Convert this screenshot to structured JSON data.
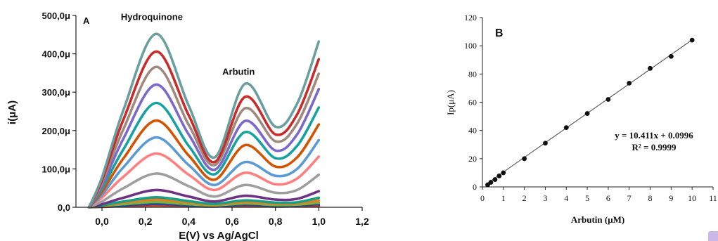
{
  "chart_data": [
    {
      "type": "line",
      "panel_label": "A",
      "xlabel": "E(V) vs Ag/AgCl",
      "ylabel": "i(μA)",
      "xlim": [
        -0.12,
        1.2
      ],
      "ylim": [
        0,
        500
      ],
      "x_ticks": [
        0.0,
        0.2,
        0.4,
        0.6,
        0.8,
        1.0,
        1.2
      ],
      "x_tick_labels": [
        "0,0",
        "0,2",
        "0,4",
        "0,6",
        "0,8",
        "1,0",
        "1,2"
      ],
      "y_ticks": [
        0,
        100,
        200,
        300,
        400,
        500
      ],
      "y_tick_labels": [
        "0,0",
        "100,0μ",
        "200,0μ",
        "300,0μ",
        "400,0μ",
        "500,0μ"
      ],
      "annotations": [
        {
          "text": "Hydroquinone",
          "x": 0.23,
          "y": 488
        },
        {
          "text": "Arbutin",
          "x": 0.63,
          "y": 345
        }
      ],
      "series": [
        {
          "color": "#c0392b",
          "values_x": [
            -0.06,
            0.0,
            0.1,
            0.25,
            0.4,
            0.52,
            0.66,
            0.8,
            0.9,
            1.0
          ],
          "values_y": [
            0,
            1,
            3,
            5,
            3,
            2,
            4,
            2,
            3,
            4
          ]
        },
        {
          "color": "#1f4e9c",
          "values_x": [
            -0.06,
            0.0,
            0.1,
            0.25,
            0.4,
            0.52,
            0.66,
            0.8,
            0.9,
            1.0
          ],
          "values_y": [
            0,
            2,
            5,
            9,
            5,
            3,
            7,
            4,
            5,
            8
          ]
        },
        {
          "color": "#7bb13c",
          "values_x": [
            -0.06,
            0.0,
            0.1,
            0.25,
            0.4,
            0.52,
            0.66,
            0.8,
            0.9,
            1.0
          ],
          "values_y": [
            0,
            3,
            8,
            14,
            8,
            5,
            10,
            6,
            7,
            12
          ]
        },
        {
          "color": "#e67e22",
          "values_x": [
            -0.06,
            0.0,
            0.1,
            0.25,
            0.4,
            0.52,
            0.66,
            0.8,
            0.9,
            1.0
          ],
          "values_y": [
            0,
            4,
            12,
            20,
            12,
            7,
            14,
            9,
            10,
            18
          ]
        },
        {
          "color": "#16a085",
          "values_x": [
            -0.06,
            0.0,
            0.1,
            0.25,
            0.4,
            0.52,
            0.66,
            0.8,
            0.9,
            1.0
          ],
          "values_y": [
            0,
            5,
            15,
            26,
            16,
            9,
            18,
            12,
            13,
            25
          ]
        },
        {
          "color": "#6c3483",
          "values_x": [
            -0.06,
            0.0,
            0.1,
            0.25,
            0.4,
            0.52,
            0.66,
            0.8,
            0.9,
            1.0
          ],
          "values_y": [
            0,
            8,
            25,
            45,
            28,
            15,
            30,
            20,
            22,
            42
          ]
        },
        {
          "color": "#9e9e9e",
          "values_x": [
            -0.06,
            0.0,
            0.1,
            0.25,
            0.4,
            0.52,
            0.66,
            0.8,
            0.9,
            1.0
          ],
          "values_y": [
            0,
            15,
            50,
            88,
            55,
            28,
            58,
            38,
            45,
            85
          ]
        },
        {
          "color": "#ff7f7f",
          "values_x": [
            -0.06,
            0.0,
            0.1,
            0.25,
            0.4,
            0.52,
            0.66,
            0.8,
            0.9,
            1.0
          ],
          "values_y": [
            0,
            25,
            80,
            140,
            85,
            45,
            90,
            60,
            75,
            132
          ]
        },
        {
          "color": "#5b9bd5",
          "values_x": [
            -0.06,
            0.0,
            0.1,
            0.25,
            0.4,
            0.52,
            0.66,
            0.8,
            0.9,
            1.0
          ],
          "values_y": [
            0,
            32,
            105,
            182,
            110,
            58,
            118,
            82,
            100,
            175
          ]
        },
        {
          "color": "#d35400",
          "values_x": [
            -0.06,
            0.0,
            0.1,
            0.25,
            0.4,
            0.52,
            0.66,
            0.8,
            0.9,
            1.0
          ],
          "values_y": [
            0,
            40,
            128,
            226,
            135,
            72,
            162,
            106,
            130,
            216
          ]
        },
        {
          "color": "#16a2a0",
          "values_x": [
            -0.06,
            0.0,
            0.1,
            0.25,
            0.4,
            0.52,
            0.66,
            0.8,
            0.9,
            1.0
          ],
          "values_y": [
            0,
            48,
            152,
            272,
            160,
            86,
            196,
            128,
            160,
            260
          ]
        },
        {
          "color": "#7b68c8",
          "values_x": [
            -0.06,
            0.0,
            0.1,
            0.25,
            0.4,
            0.52,
            0.66,
            0.8,
            0.9,
            1.0
          ],
          "values_y": [
            0,
            55,
            180,
            320,
            190,
            98,
            225,
            148,
            190,
            308
          ]
        },
        {
          "color": "#a0897d",
          "values_x": [
            -0.06,
            0.0,
            0.1,
            0.25,
            0.4,
            0.52,
            0.66,
            0.8,
            0.9,
            1.0
          ],
          "values_y": [
            0,
            63,
            205,
            366,
            215,
            110,
            258,
            172,
            218,
            348
          ]
        },
        {
          "color": "#c92a2a",
          "values_x": [
            -0.06,
            0.0,
            0.1,
            0.25,
            0.4,
            0.52,
            0.66,
            0.8,
            0.9,
            1.0
          ],
          "values_y": [
            0,
            70,
            230,
            406,
            240,
            118,
            288,
            190,
            242,
            386
          ]
        },
        {
          "color": "#6a9fa0",
          "values_x": [
            -0.06,
            0.0,
            0.1,
            0.25,
            0.4,
            0.52,
            0.66,
            0.8,
            0.9,
            1.0
          ],
          "values_y": [
            0,
            78,
            255,
            452,
            265,
            130,
            322,
            210,
            270,
            432
          ]
        }
      ]
    },
    {
      "type": "scatter",
      "panel_label": "B",
      "xlabel": "Arbutin  (μM)",
      "ylabel": "Ip(μA)",
      "xlim": [
        0,
        11
      ],
      "ylim": [
        0,
        120
      ],
      "x_ticks": [
        0,
        1,
        2,
        3,
        4,
        5,
        6,
        7,
        8,
        9,
        10,
        11
      ],
      "x_tick_labels": [
        "0",
        "1",
        "2",
        "3",
        "4",
        "5",
        "6",
        "7",
        "8",
        "9",
        "10",
        "11"
      ],
      "y_ticks": [
        0,
        20,
        40,
        60,
        80,
        100,
        120
      ],
      "y_tick_labels": [
        "0",
        "20",
        "40",
        "60",
        "80",
        "100",
        "120"
      ],
      "x": [
        0.25,
        0.4,
        0.6,
        0.8,
        1,
        2,
        3,
        4,
        5,
        6,
        7,
        8,
        9,
        10
      ],
      "y": [
        1.5,
        3.2,
        5.2,
        7.8,
        10,
        20,
        31,
        42,
        52,
        62,
        73.5,
        84,
        92.5,
        104
      ],
      "fit": {
        "slope": 10.411,
        "intercept": 0.0996,
        "x_range": [
          0.25,
          10
        ]
      },
      "equation": "y = 10.411x + 0.0996",
      "r_squared": "R² = 0.9999"
    }
  ]
}
